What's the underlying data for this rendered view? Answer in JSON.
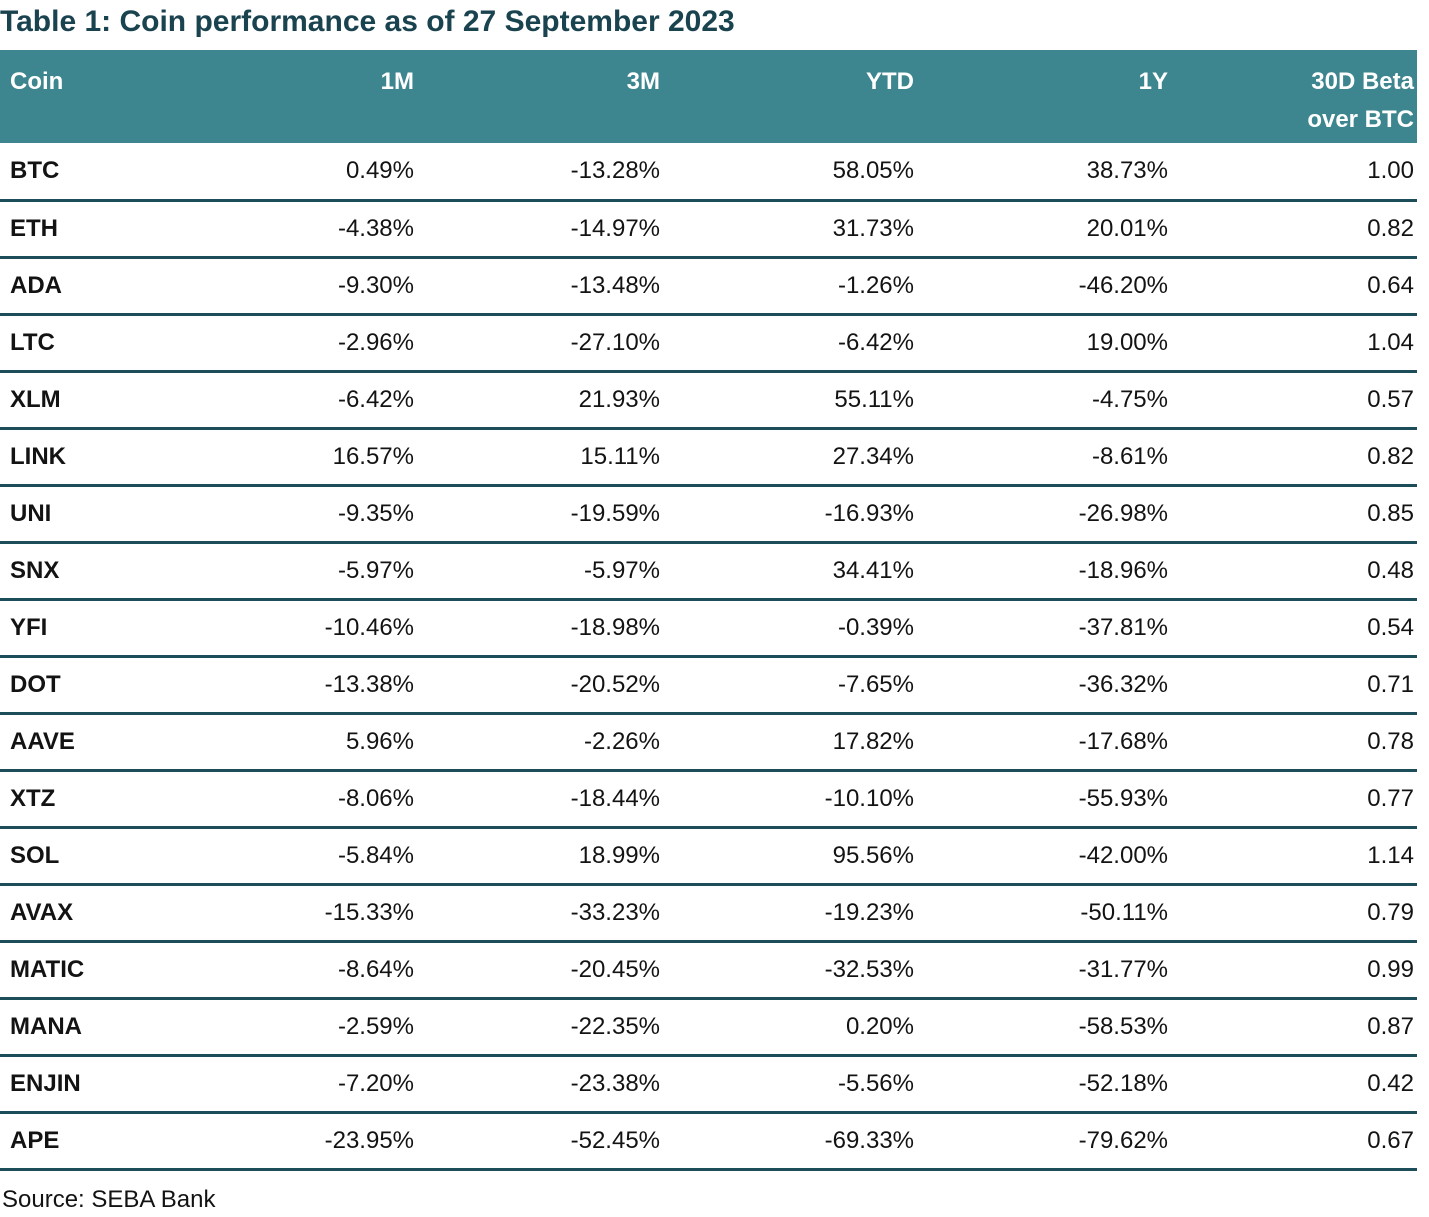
{
  "title": "Table 1: Coin performance as of 27 September 2023",
  "source": "Source: SEBA Bank",
  "colors": {
    "header_bg": "#3E868F",
    "header_text": "#FFFFFF",
    "title_text": "#1A4350",
    "separator": "#1D4D59",
    "body_text": "#131313"
  },
  "table": {
    "header": {
      "coin": "Coin",
      "m1": "1M",
      "m3": "3M",
      "ytd": "YTD",
      "y1": "1Y",
      "beta_line1": "30D Beta",
      "beta_line2": "over BTC"
    },
    "columns": [
      "Coin",
      "1M",
      "3M",
      "YTD",
      "1Y",
      "30D Beta over BTC"
    ],
    "rows": [
      {
        "coin": "BTC",
        "values": [
          "0.49%",
          "-13.28%",
          "58.05%",
          "38.73%",
          "1.00"
        ]
      },
      {
        "coin": "ETH",
        "values": [
          "-4.38%",
          "-14.97%",
          "31.73%",
          "20.01%",
          "0.82"
        ]
      },
      {
        "coin": "ADA",
        "values": [
          "-9.30%",
          "-13.48%",
          "-1.26%",
          "-46.20%",
          "0.64"
        ]
      },
      {
        "coin": "LTC",
        "values": [
          "-2.96%",
          "-27.10%",
          "-6.42%",
          "19.00%",
          "1.04"
        ]
      },
      {
        "coin": "XLM",
        "values": [
          "-6.42%",
          "21.93%",
          "55.11%",
          "-4.75%",
          "0.57"
        ]
      },
      {
        "coin": "LINK",
        "values": [
          "16.57%",
          "15.11%",
          "27.34%",
          "-8.61%",
          "0.82"
        ]
      },
      {
        "coin": "UNI",
        "values": [
          "-9.35%",
          "-19.59%",
          "-16.93%",
          "-26.98%",
          "0.85"
        ]
      },
      {
        "coin": "SNX",
        "values": [
          "-5.97%",
          "-5.97%",
          "34.41%",
          "-18.96%",
          "0.48"
        ]
      },
      {
        "coin": "YFI",
        "values": [
          "-10.46%",
          "-18.98%",
          "-0.39%",
          "-37.81%",
          "0.54"
        ]
      },
      {
        "coin": "DOT",
        "values": [
          "-13.38%",
          "-20.52%",
          "-7.65%",
          "-36.32%",
          "0.71"
        ]
      },
      {
        "coin": "AAVE",
        "values": [
          "5.96%",
          "-2.26%",
          "17.82%",
          "-17.68%",
          "0.78"
        ]
      },
      {
        "coin": "XTZ",
        "values": [
          "-8.06%",
          "-18.44%",
          "-10.10%",
          "-55.93%",
          "0.77"
        ]
      },
      {
        "coin": "SOL",
        "values": [
          "-5.84%",
          "18.99%",
          "95.56%",
          "-42.00%",
          "1.14"
        ]
      },
      {
        "coin": "AVAX",
        "values": [
          "-15.33%",
          "-33.23%",
          "-19.23%",
          "-50.11%",
          "0.79"
        ]
      },
      {
        "coin": "MATIC",
        "values": [
          "-8.64%",
          "-20.45%",
          "-32.53%",
          "-31.77%",
          "0.99"
        ]
      },
      {
        "coin": "MANA",
        "values": [
          "-2.59%",
          "-22.35%",
          "0.20%",
          "-58.53%",
          "0.87"
        ]
      },
      {
        "coin": "ENJIN",
        "values": [
          "-7.20%",
          "-23.38%",
          "-5.56%",
          "-52.18%",
          "0.42"
        ]
      },
      {
        "coin": "APE",
        "values": [
          "-23.95%",
          "-52.45%",
          "-69.33%",
          "-79.62%",
          "0.67"
        ]
      }
    ]
  }
}
